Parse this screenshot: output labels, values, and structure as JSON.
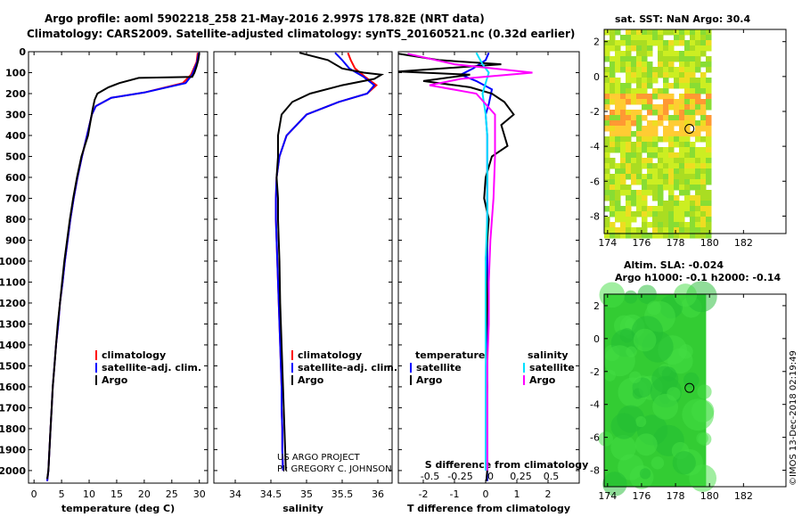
{
  "header": {
    "line1": "Argo profile: aoml 5902218_258 21-May-2016 2.997S 178.82E (NRT data)",
    "line2": "Climatology: CARS2009. Satellite-adjusted climatology: synTS_20160521.nc (0.32d earlier)"
  },
  "credit": {
    "project": "US ARGO PROJECT",
    "pi": "PI: GREGORY C. JOHNSON",
    "imos": "©IMOS 13-Dec-2018 02:19:49"
  },
  "colors": {
    "climatology": "#ff0000",
    "satellite": "#0000ff",
    "argo": "#000000",
    "satellite_salinity": "#00e0ff",
    "argo_salinity": "#ff00ff"
  },
  "depth_ticks": [
    0,
    100,
    200,
    300,
    400,
    500,
    600,
    700,
    800,
    900,
    1000,
    1100,
    1200,
    1300,
    1400,
    1500,
    1600,
    1700,
    1800,
    1900,
    2000
  ],
  "chart_data": [
    {
      "id": "temperature",
      "type": "line",
      "xlabel": "temperature (deg C)",
      "ylabel": "",
      "xlim": [
        -1,
        31.5
      ],
      "ylim": [
        2060,
        0
      ],
      "xticks": [
        0,
        5,
        10,
        15,
        20,
        25,
        30
      ],
      "xtick_labels": [
        "0",
        "5",
        "10",
        "15",
        "20",
        "25",
        "30"
      ],
      "legend": [
        "climatology",
        "satellite-adj. clim.",
        "Argo"
      ],
      "series": [
        {
          "name": "climatology",
          "color": "#ff0000",
          "x": [
            29.7,
            29.5,
            28.5,
            27,
            20,
            14,
            11.2,
            10.5,
            9.6,
            8.7,
            7.9,
            7.2,
            6.6,
            6.1,
            5.6,
            5.2,
            4.7,
            4.4,
            4.0,
            3.7,
            3.4,
            3.2,
            3.0,
            2.8,
            2.6,
            2.4
          ],
          "y": [
            5,
            50,
            110,
            150,
            195,
            220,
            260,
            300,
            400,
            500,
            600,
            700,
            800,
            900,
            1000,
            1100,
            1200,
            1300,
            1400,
            1500,
            1600,
            1700,
            1800,
            1900,
            2000,
            2050
          ]
        },
        {
          "name": "satellite-adj. clim.",
          "color": "#0000ff",
          "x": [
            29.9,
            29.6,
            28.7,
            27.5,
            20,
            14,
            11.2,
            10.5,
            9.6,
            8.7,
            7.9,
            7.2,
            6.6,
            6.1,
            5.6,
            5.2,
            4.7,
            4.4,
            4.0,
            3.7,
            3.4,
            3.2,
            3.0,
            2.8,
            2.6,
            2.4
          ],
          "y": [
            5,
            50,
            110,
            150,
            195,
            220,
            260,
            300,
            400,
            500,
            600,
            700,
            800,
            900,
            1000,
            1100,
            1200,
            1300,
            1400,
            1500,
            1600,
            1700,
            1800,
            1900,
            2000,
            2050
          ]
        },
        {
          "name": "Argo",
          "color": "#000000",
          "x": [
            30.0,
            29.8,
            29.5,
            29.1,
            28.7,
            19,
            15.5,
            13.5,
            11.5,
            11,
            10.6,
            9.8,
            8.6,
            7.8,
            7.1,
            6.5,
            6.0,
            5.5,
            5.1,
            4.7,
            4.3,
            4.0,
            3.7,
            3.4,
            3.2,
            3.0,
            2.8,
            2.6,
            2.4
          ],
          "y": [
            5,
            40,
            70,
            100,
            120,
            125,
            150,
            170,
            200,
            230,
            280,
            400,
            500,
            600,
            700,
            800,
            900,
            1000,
            1100,
            1200,
            1300,
            1400,
            1500,
            1600,
            1700,
            1800,
            1900,
            2000,
            2040
          ]
        }
      ]
    },
    {
      "id": "salinity",
      "type": "line",
      "xlabel": "salinity",
      "ylabel": "",
      "xlim": [
        33.7,
        36.2
      ],
      "ylim": [
        2060,
        0
      ],
      "xticks": [
        34,
        34.5,
        35,
        35.5,
        36
      ],
      "xtick_labels": [
        "34",
        "34.5",
        "35",
        "35.5",
        "36"
      ],
      "legend": [
        "climatology",
        "satellite-adj. clim.",
        "Argo"
      ],
      "series": [
        {
          "name": "climatology",
          "color": "#ff0000",
          "x": [
            35.58,
            35.62,
            35.68,
            35.82,
            35.98,
            35.85,
            35.45,
            35.0,
            34.72,
            34.62,
            34.58,
            34.57,
            34.57,
            34.58,
            34.59,
            34.6,
            34.61,
            34.62,
            34.63,
            34.64,
            34.65,
            34.65,
            34.66,
            34.66,
            34.67
          ],
          "y": [
            5,
            40,
            80,
            120,
            160,
            200,
            240,
            300,
            400,
            500,
            600,
            700,
            800,
            900,
            1000,
            1100,
            1200,
            1300,
            1400,
            1500,
            1600,
            1700,
            1800,
            1900,
            2000
          ]
        },
        {
          "name": "satellite-adj. clim.",
          "color": "#0000ff",
          "x": [
            35.4,
            35.5,
            35.6,
            35.8,
            35.95,
            35.85,
            35.45,
            35.0,
            34.72,
            34.62,
            34.58,
            34.57,
            34.57,
            34.58,
            34.59,
            34.6,
            34.61,
            34.62,
            34.63,
            34.64,
            34.65,
            34.65,
            34.66,
            34.66,
            34.67
          ],
          "y": [
            5,
            40,
            80,
            120,
            160,
            200,
            240,
            300,
            400,
            500,
            600,
            700,
            800,
            900,
            1000,
            1100,
            1200,
            1300,
            1400,
            1500,
            1600,
            1700,
            1800,
            1900,
            2000
          ]
        },
        {
          "name": "Argo",
          "color": "#000000",
          "x": [
            34.9,
            35.3,
            35.5,
            35.8,
            36.05,
            35.95,
            35.5,
            35.05,
            34.8,
            34.65,
            34.6,
            34.6,
            34.58,
            34.6,
            34.6,
            34.61,
            34.62,
            34.63,
            34.64,
            34.65,
            34.66,
            34.67,
            34.68,
            34.69,
            34.7,
            34.71
          ],
          "y": [
            5,
            40,
            80,
            100,
            110,
            130,
            160,
            200,
            240,
            300,
            400,
            500,
            600,
            700,
            800,
            900,
            1000,
            1200,
            1300,
            1400,
            1500,
            1600,
            1700,
            1800,
            1900,
            2000
          ]
        }
      ]
    },
    {
      "id": "difference",
      "type": "line",
      "xlabel": "T difference from climatology",
      "top_label": "S difference from climatology",
      "xlim": [
        -2.8,
        3.0
      ],
      "ylim": [
        2060,
        0
      ],
      "xticks": [
        -2,
        -1,
        0,
        1,
        2
      ],
      "xtick_labels": [
        "-2",
        "-1",
        "0",
        "1",
        "2"
      ],
      "sticks": [
        -0.5,
        -0.25,
        0,
        0.25,
        0.5
      ],
      "stick_labels": [
        "-0.5",
        "-0.25",
        "0",
        "0.25",
        "0.5"
      ],
      "legend_temperature_title": "temperature",
      "legend_salinity_title": "salinity",
      "legend_temperature": [
        "satellite",
        "Argo"
      ],
      "legend_salinity": [
        "satellite",
        "Argo"
      ],
      "series": [
        {
          "name": "satellite",
          "color": "#0000ff",
          "x": [
            0.1,
            0.0,
            -0.4,
            -0.8,
            -0.3,
            0.2,
            0.1,
            0.0,
            0.05,
            0.05,
            0.05,
            0.05,
            0.05,
            0.05,
            0.05,
            0.05,
            0.05,
            0.05
          ],
          "y": [
            5,
            40,
            80,
            110,
            140,
            180,
            250,
            300,
            400,
            600,
            800,
            1000,
            1200,
            1400,
            1600,
            1800,
            2000,
            2050
          ]
        },
        {
          "name": "Argo",
          "color": "#000000",
          "x": [
            -2.8,
            -1.5,
            0.5,
            -2.8,
            -0.5,
            -2.0,
            -0.5,
            0.2,
            0.6,
            0.9,
            0.5,
            0.7,
            0.2,
            0.0,
            -0.05,
            0.1,
            0.0,
            0.05,
            0.0,
            0.05,
            0.0,
            0.05,
            0.02
          ],
          "y": [
            10,
            40,
            60,
            95,
            110,
            140,
            170,
            200,
            240,
            300,
            350,
            450,
            500,
            600,
            700,
            800,
            1000,
            1200,
            1400,
            1600,
            1800,
            2000,
            2050
          ]
        },
        {
          "name": "satellite",
          "color": "#00e0ff",
          "x": [
            -0.3,
            -0.1,
            0.1,
            0.0,
            -0.1,
            0.0,
            0.05,
            0.05,
            0.05,
            0.0,
            0.0,
            0.0,
            0.0,
            0.0,
            0.0
          ],
          "y": [
            5,
            60,
            100,
            150,
            200,
            300,
            400,
            600,
            800,
            1000,
            1200,
            1400,
            1600,
            1800,
            2000
          ]
        },
        {
          "name": "Argo",
          "color": "#ff00ff",
          "x": [
            -2.5,
            -1.0,
            1.5,
            -0.8,
            -1.8,
            -0.3,
            0.3,
            0.3,
            0.25,
            0.15,
            0.1,
            0.1,
            0.05,
            0.05,
            0.05
          ],
          "y": [
            10,
            60,
            100,
            130,
            160,
            200,
            300,
            500,
            700,
            900,
            1100,
            1300,
            1500,
            1800,
            2000
          ]
        }
      ]
    },
    {
      "id": "sst_map",
      "type": "heatmap",
      "title": "sat. SST: NaN Argo: 30.4",
      "xlim": [
        173.8,
        184.5
      ],
      "ylim": [
        -9,
        2.7
      ],
      "xticks": [
        174,
        176,
        178,
        180,
        182
      ],
      "yticks": [
        2,
        0,
        -2,
        -4,
        -6,
        -8
      ],
      "data_xlim": [
        173.8,
        179.8
      ],
      "argo_position": {
        "lon": 178.82,
        "lat": -2.997
      }
    },
    {
      "id": "sla_map",
      "type": "heatmap",
      "title": "Altim. SLA: -0.024",
      "subtitle": "Argo h1000: -0.1 h2000: -0.14",
      "xlim": [
        173.8,
        184.5
      ],
      "ylim": [
        -9,
        2.7
      ],
      "xticks": [
        174,
        176,
        178,
        180,
        182
      ],
      "yticks": [
        2,
        0,
        -2,
        -4,
        -6,
        -8
      ],
      "data_xlim": [
        173.8,
        179.8
      ],
      "argo_position": {
        "lon": 178.82,
        "lat": -2.997
      }
    }
  ]
}
